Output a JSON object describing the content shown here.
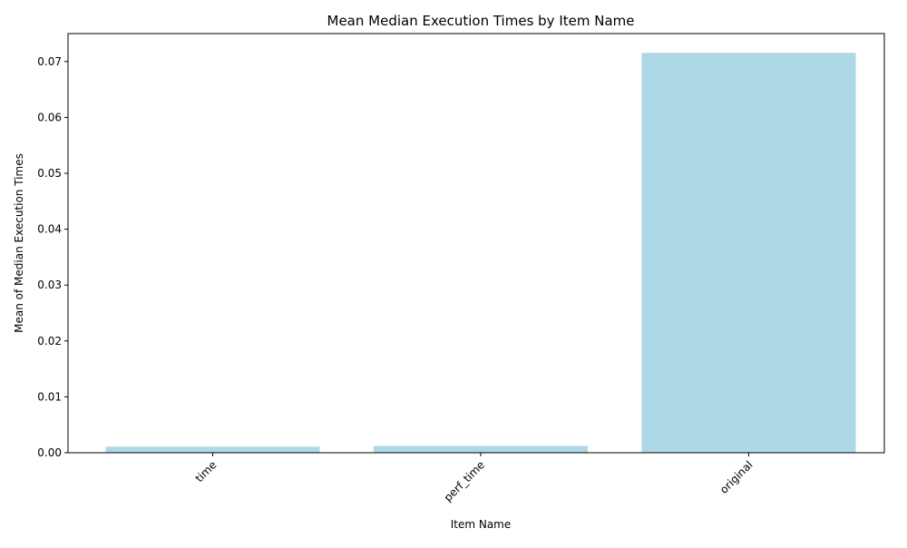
{
  "chart_data": {
    "type": "bar",
    "title": "Mean Median Execution Times by Item Name",
    "xlabel": "Item Name",
    "ylabel": "Mean of Median Execution Times",
    "categories": [
      "time",
      "perf_time",
      "original"
    ],
    "values": [
      0.00108,
      0.00122,
      0.07155
    ],
    "ylim": [
      0,
      0.075
    ],
    "yticks": [
      "0.00",
      "0.01",
      "0.02",
      "0.03",
      "0.04",
      "0.05",
      "0.06",
      "0.07"
    ],
    "ytick_values": [
      0,
      0.01,
      0.02,
      0.03,
      0.04,
      0.05,
      0.06,
      0.07
    ],
    "bar_color": "#add8e6",
    "grid": false,
    "legend": "none",
    "xtick_rotation": 45
  }
}
